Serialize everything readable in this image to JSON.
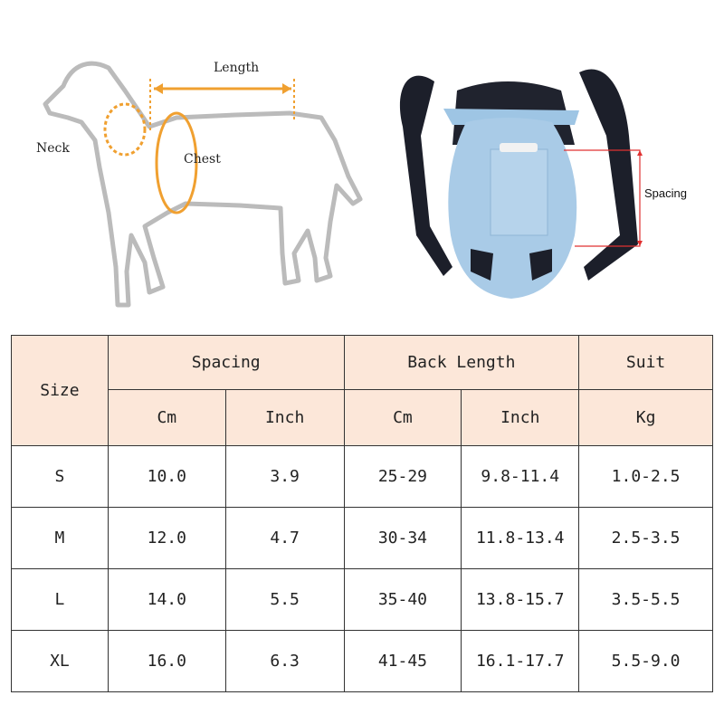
{
  "diagram": {
    "length_label": "Length",
    "neck_label": "Neck",
    "chest_label": "Chest",
    "spacing_label": "Spacing",
    "accent": "#f0a030",
    "spacing_color": "#e03030"
  },
  "table": {
    "header": {
      "size": "Size",
      "spacing": "Spacing",
      "back_length": "Back Length",
      "suit": "Suit",
      "spacing_cm": "Cm",
      "spacing_inch": "Inch",
      "back_cm": "Cm",
      "back_inch": "Inch",
      "suit_kg": "Kg"
    },
    "header_bg": "#fce7d9",
    "rows": [
      {
        "size": "S",
        "spacing_cm": "10.0",
        "spacing_inch": "3.9",
        "back_cm": "25-29",
        "back_inch": "9.8-11.4",
        "kg": "1.0-2.5"
      },
      {
        "size": "M",
        "spacing_cm": "12.0",
        "spacing_inch": "4.7",
        "back_cm": "30-34",
        "back_inch": "11.8-13.4",
        "kg": "2.5-3.5"
      },
      {
        "size": "L",
        "spacing_cm": "14.0",
        "spacing_inch": "5.5",
        "back_cm": "35-40",
        "back_inch": "13.8-15.7",
        "kg": "3.5-5.5"
      },
      {
        "size": "XL",
        "spacing_cm": "16.0",
        "spacing_inch": "6.3",
        "back_cm": "41-45",
        "back_inch": "16.1-17.7",
        "kg": "5.5-9.0"
      }
    ]
  }
}
